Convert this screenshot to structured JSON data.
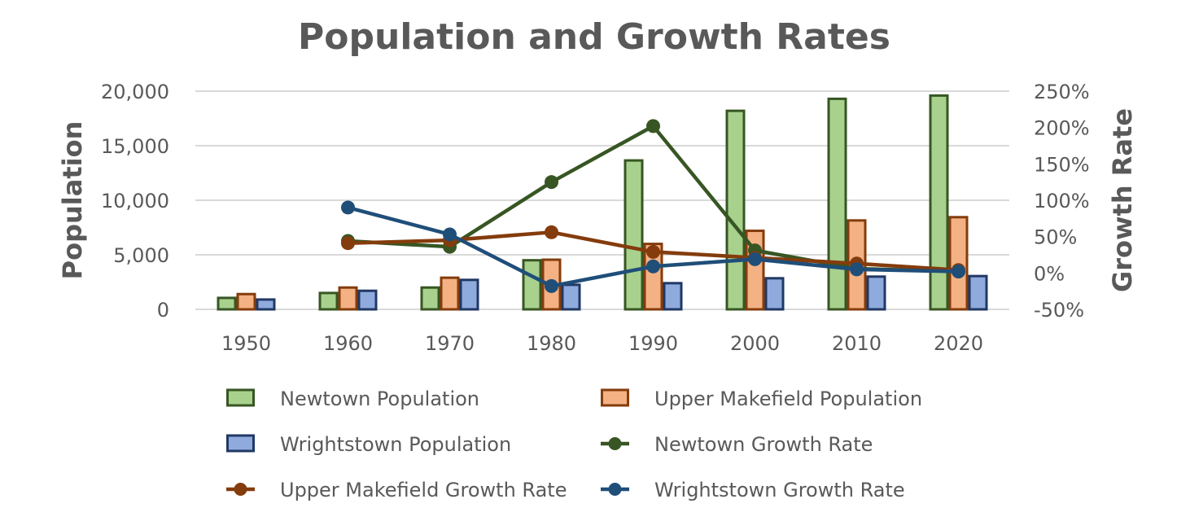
{
  "chart_data": {
    "type": "bar",
    "title": "Population and Growth Rates",
    "xlabel": "",
    "ylabel": "Population",
    "y2label": "Growth Rate",
    "categories": [
      "1950",
      "1960",
      "1970",
      "1980",
      "1990",
      "2000",
      "2010",
      "2020"
    ],
    "ylim": [
      0,
      20000
    ],
    "y_ticks": [
      0,
      5000,
      10000,
      15000,
      20000
    ],
    "y_tick_labels": [
      "0",
      "5,000",
      "10,000",
      "15,000",
      "20,000"
    ],
    "y2lim": [
      -50,
      250
    ],
    "y2_ticks": [
      -50,
      0,
      50,
      100,
      150,
      200,
      250
    ],
    "y2_tick_labels": [
      "-50%",
      "0%",
      "50%",
      "100%",
      "150%",
      "200%",
      "250%"
    ],
    "grid": true,
    "legend_position": "bottom",
    "series": [
      {
        "name": "Newtown Population",
        "kind": "bar",
        "axis": "left",
        "fill": "#a9d18e",
        "stroke": "#375623",
        "values": [
          1050,
          1500,
          2000,
          4500,
          13650,
          18200,
          19300,
          19600
        ]
      },
      {
        "name": "Upper Makefield Population",
        "kind": "bar",
        "axis": "left",
        "fill": "#f4b183",
        "stroke": "#843c0c",
        "values": [
          1400,
          2000,
          2900,
          4550,
          6000,
          7200,
          8150,
          8450
        ]
      },
      {
        "name": "Wrightstown Population",
        "kind": "bar",
        "axis": "left",
        "fill": "#8faadc",
        "stroke": "#203864",
        "values": [
          900,
          1700,
          2700,
          2250,
          2400,
          2850,
          3000,
          3050
        ]
      },
      {
        "name": "Newtown Growth Rate",
        "kind": "line",
        "axis": "right",
        "color": "#375623",
        "values": [
          null,
          44,
          36,
          125,
          202,
          31,
          6,
          2
        ]
      },
      {
        "name": "Upper Makefield Growth Rate",
        "kind": "line",
        "axis": "right",
        "color": "#843c0c",
        "values": [
          null,
          41,
          45,
          56,
          29,
          21,
          13,
          4
        ]
      },
      {
        "name": "Wrightstown Growth Rate",
        "kind": "line",
        "axis": "right",
        "color": "#1f4e79",
        "values": [
          null,
          90,
          53,
          -18,
          9,
          19,
          5,
          2
        ]
      }
    ]
  }
}
